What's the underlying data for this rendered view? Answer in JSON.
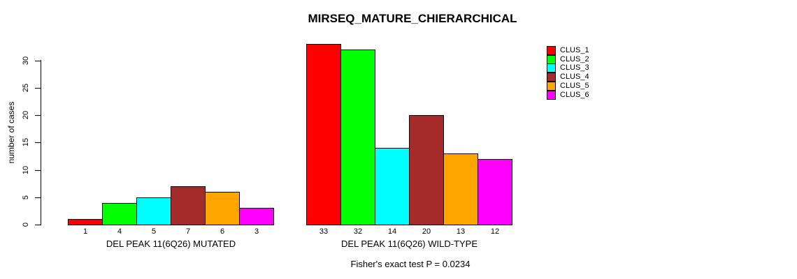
{
  "chart_data": {
    "type": "bar",
    "title": "MIRSEQ_MATURE_CHIERARCHICAL",
    "ylabel": "number of cases",
    "yticks": [
      0,
      5,
      10,
      15,
      20,
      25,
      30
    ],
    "ylim": [
      0,
      33.6
    ],
    "grid": false,
    "legend_position": "right",
    "series": [
      {
        "name": "CLUS_1",
        "color": "#FF0000"
      },
      {
        "name": "CLUS_2",
        "color": "#00FF00"
      },
      {
        "name": "CLUS_3",
        "color": "#00FFFF"
      },
      {
        "name": "CLUS_4",
        "color": "#A52A2A"
      },
      {
        "name": "CLUS_5",
        "color": "#FFA500"
      },
      {
        "name": "CLUS_6",
        "color": "#FF00FF"
      }
    ],
    "groups": [
      {
        "label": "DEL PEAK 11(6Q26) MUTATED",
        "values": [
          1,
          4,
          5,
          7,
          6,
          3
        ],
        "bar_labels": [
          "1",
          "4",
          "5",
          "7",
          "6",
          "3"
        ]
      },
      {
        "label": "DEL PEAK 11(6Q26) WILD-TYPE",
        "values": [
          33,
          32,
          14,
          20,
          13,
          12
        ],
        "bar_labels": [
          "33",
          "32",
          "14",
          "20",
          "13",
          "12"
        ]
      }
    ],
    "note": "Fisher's exact test P = 0.0234"
  }
}
